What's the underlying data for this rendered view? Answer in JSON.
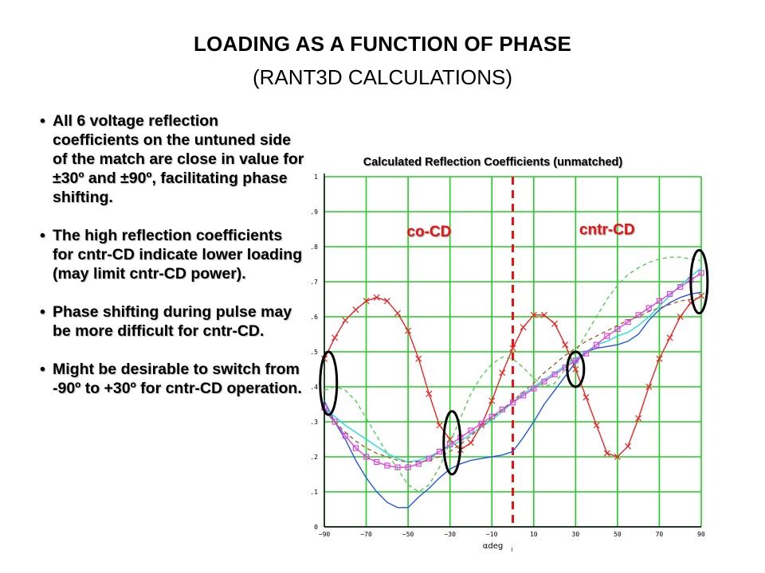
{
  "slide": {
    "title": "LOADING AS A FUNCTION OF PHASE",
    "subtitle": "(RANT3D CALCULATIONS)",
    "bullet_glyph": "•",
    "bullets": [
      "All 6 voltage reflection coefficients on the untuned side of the match are close in value for ±30º and ±90º, facilitating phase shifting.",
      "The high reflection coefficients for cntr-CD indicate lower loading (may limit cntr-CD power).",
      "Phase shifting during pulse may be more difficult for cntr-CD.",
      "Might be desirable to switch from -90º to +30º for cntr-CD operation."
    ]
  },
  "colors": {
    "grid": "#22cc22",
    "axis": "#000000",
    "divider": "#ee1111",
    "region_label": "#ee1111",
    "highlight_ellipse": "#000000"
  },
  "chart_data": {
    "type": "line",
    "title": "Calculated Reflection Coefficients (unmatched)",
    "xlabel": "αdeg",
    "xlabel_subscript": "i",
    "ylabel": "",
    "xlim": [
      -90,
      90
    ],
    "ylim": [
      0,
      1
    ],
    "grid": true,
    "x_ticks": [
      -90,
      -70,
      -50,
      -30,
      -10,
      10,
      30,
      50,
      70,
      90
    ],
    "x_tick_labels": [
      "−90",
      "−70",
      "−50",
      "−30",
      "−10",
      "10",
      "30",
      "50",
      "70",
      "90"
    ],
    "y_ticks": [
      0,
      0.1,
      0.2,
      0.3,
      0.4,
      0.5,
      0.6,
      0.7,
      0.8,
      0.9,
      1
    ],
    "y_tick_labels": [
      "0",
      ".1",
      ".2",
      ".3",
      ".4",
      ".5",
      ".6",
      ".7",
      ".8",
      ".9",
      "1"
    ],
    "divider_x": 0,
    "region_labels": [
      {
        "text": "co-CD",
        "x": -40,
        "y": 0.83
      },
      {
        "text": "cntr-CD",
        "x": 45,
        "y": 0.835
      }
    ],
    "highlights": [
      {
        "x": -88,
        "y": 0.41,
        "rx": 4,
        "ry": 0.09
      },
      {
        "x": -29,
        "y": 0.24,
        "rx": 4,
        "ry": 0.09
      },
      {
        "x": 30,
        "y": 0.45,
        "rx": 4,
        "ry": 0.05
      },
      {
        "x": 89,
        "y": 0.7,
        "rx": 4,
        "ry": 0.09
      }
    ],
    "series": [
      {
        "color": "#ee2222",
        "style": "solid",
        "marker": "x",
        "x": [
          -90,
          -85,
          -80,
          -75,
          -70,
          -65,
          -60,
          -55,
          -50,
          -45,
          -40,
          -35,
          -30,
          -25,
          -20,
          -15,
          -10,
          -5,
          0,
          5,
          10,
          15,
          20,
          25,
          30,
          35,
          40,
          45,
          50,
          55,
          60,
          65,
          70,
          75,
          80,
          85,
          90
        ],
        "y": [
          0.48,
          0.54,
          0.59,
          0.62,
          0.645,
          0.655,
          0.645,
          0.61,
          0.56,
          0.48,
          0.38,
          0.29,
          0.25,
          0.22,
          0.24,
          0.29,
          0.36,
          0.44,
          0.51,
          0.57,
          0.605,
          0.605,
          0.58,
          0.52,
          0.45,
          0.37,
          0.29,
          0.21,
          0.2,
          0.23,
          0.31,
          0.4,
          0.48,
          0.54,
          0.6,
          0.64,
          0.66
        ]
      },
      {
        "color": "#2255ee",
        "style": "solid",
        "marker": "none",
        "x": [
          -90,
          -85,
          -80,
          -75,
          -70,
          -65,
          -60,
          -55,
          -50,
          -45,
          -40,
          -35,
          -30,
          -25,
          -20,
          -15,
          -10,
          -5,
          0,
          5,
          10,
          15,
          20,
          25,
          30,
          35,
          40,
          45,
          50,
          55,
          60,
          65,
          70,
          75,
          80,
          85,
          90
        ],
        "y": [
          0.36,
          0.3,
          0.25,
          0.19,
          0.14,
          0.1,
          0.07,
          0.055,
          0.055,
          0.085,
          0.11,
          0.14,
          0.165,
          0.18,
          0.19,
          0.195,
          0.2,
          0.205,
          0.215,
          0.255,
          0.3,
          0.35,
          0.39,
          0.43,
          0.47,
          0.5,
          0.51,
          0.515,
          0.52,
          0.53,
          0.55,
          0.59,
          0.62,
          0.64,
          0.655,
          0.665,
          0.67
        ]
      },
      {
        "color": "#22dddd",
        "style": "solid",
        "marker": "none",
        "x": [
          -90,
          -85,
          -80,
          -75,
          -70,
          -65,
          -60,
          -55,
          -50,
          -45,
          -40,
          -35,
          -30,
          -25,
          -20,
          -15,
          -10,
          -5,
          0,
          5,
          10,
          15,
          20,
          25,
          30,
          35,
          40,
          45,
          50,
          55,
          60,
          65,
          70,
          75,
          80,
          85,
          90
        ],
        "y": [
          0.34,
          0.315,
          0.29,
          0.27,
          0.25,
          0.23,
          0.21,
          0.195,
          0.185,
          0.19,
          0.2,
          0.215,
          0.23,
          0.245,
          0.265,
          0.285,
          0.305,
          0.33,
          0.355,
          0.38,
          0.4,
          0.42,
          0.44,
          0.46,
          0.48,
          0.5,
          0.52,
          0.53,
          0.545,
          0.555,
          0.575,
          0.6,
          0.63,
          0.66,
          0.69,
          0.715,
          0.74
        ]
      },
      {
        "color": "#dd44dd",
        "style": "solid",
        "marker": "square",
        "x": [
          -90,
          -85,
          -80,
          -75,
          -70,
          -65,
          -60,
          -55,
          -50,
          -45,
          -40,
          -35,
          -30,
          -25,
          -20,
          -15,
          -10,
          -5,
          0,
          5,
          10,
          15,
          20,
          25,
          30,
          35,
          40,
          45,
          50,
          55,
          60,
          65,
          70,
          75,
          80,
          85,
          90
        ],
        "y": [
          0.34,
          0.3,
          0.26,
          0.225,
          0.2,
          0.185,
          0.175,
          0.17,
          0.17,
          0.18,
          0.195,
          0.215,
          0.235,
          0.255,
          0.275,
          0.295,
          0.315,
          0.335,
          0.355,
          0.375,
          0.395,
          0.415,
          0.435,
          0.455,
          0.475,
          0.495,
          0.52,
          0.545,
          0.565,
          0.585,
          0.605,
          0.625,
          0.645,
          0.665,
          0.685,
          0.705,
          0.725
        ]
      },
      {
        "color": "#55cc55",
        "style": "dashed",
        "marker": "none",
        "x": [
          -90,
          -85,
          -80,
          -75,
          -70,
          -65,
          -60,
          -55,
          -50,
          -45,
          -40,
          -35,
          -30,
          -25,
          -20,
          -15,
          -10,
          -5,
          0,
          5,
          10,
          15,
          20,
          25,
          30,
          35,
          40,
          45,
          50,
          55,
          60,
          65,
          70,
          75,
          80,
          85,
          90
        ],
        "y": [
          0.39,
          0.4,
          0.39,
          0.36,
          0.31,
          0.26,
          0.21,
          0.165,
          0.12,
          0.1,
          0.12,
          0.17,
          0.24,
          0.31,
          0.38,
          0.43,
          0.465,
          0.485,
          0.48,
          0.455,
          0.425,
          0.4,
          0.41,
          0.45,
          0.5,
          0.55,
          0.6,
          0.65,
          0.69,
          0.72,
          0.74,
          0.755,
          0.765,
          0.77,
          0.77,
          0.765,
          0.76
        ]
      },
      {
        "color": "#996633",
        "style": "dashed",
        "marker": "none",
        "x": [
          -90,
          -85,
          -80,
          -75,
          -70,
          -65,
          -60,
          -55,
          -50,
          -45,
          -40,
          -35,
          -30,
          -25,
          -20,
          -15,
          -10,
          -5,
          0,
          5,
          10,
          15,
          20,
          25,
          30,
          35,
          40,
          45,
          50,
          55,
          60,
          65,
          70,
          75,
          80,
          85,
          90
        ],
        "y": [
          0.33,
          0.3,
          0.27,
          0.245,
          0.225,
          0.21,
          0.2,
          0.19,
          0.185,
          0.185,
          0.19,
          0.2,
          0.215,
          0.235,
          0.26,
          0.285,
          0.31,
          0.335,
          0.36,
          0.385,
          0.41,
          0.44,
          0.465,
          0.49,
          0.51,
          0.53,
          0.545,
          0.56,
          0.575,
          0.59,
          0.6,
          0.615,
          0.625,
          0.635,
          0.645,
          0.65,
          0.655
        ]
      }
    ]
  }
}
